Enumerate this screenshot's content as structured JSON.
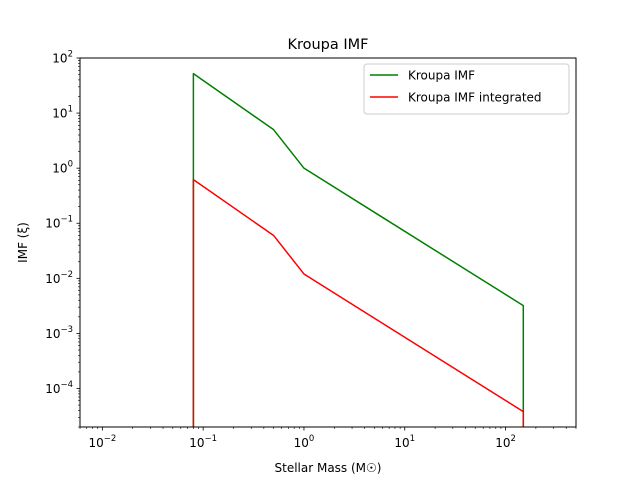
{
  "chart_data": {
    "type": "line",
    "title": "Kroupa IMF",
    "xlabel": "Stellar Mass (M☉)",
    "ylabel": "IMF (ξ)",
    "xscale": "log",
    "yscale": "log",
    "xlim": [
      0.006,
      500
    ],
    "ylim": [
      2e-05,
      100
    ],
    "grid": false,
    "legend_position": "upper right",
    "x_ticks": [
      {
        "value": 0.01,
        "base": "10",
        "exp": "−2"
      },
      {
        "value": 0.1,
        "base": "10",
        "exp": "−1"
      },
      {
        "value": 1,
        "base": "10",
        "exp": "0"
      },
      {
        "value": 10,
        "base": "10",
        "exp": "1"
      },
      {
        "value": 100,
        "base": "10",
        "exp": "2"
      }
    ],
    "y_ticks": [
      {
        "value": 0.0001,
        "base": "10",
        "exp": "−4"
      },
      {
        "value": 0.001,
        "base": "10",
        "exp": "−3"
      },
      {
        "value": 0.01,
        "base": "10",
        "exp": "−2"
      },
      {
        "value": 0.1,
        "base": "10",
        "exp": "−1"
      },
      {
        "value": 1,
        "base": "10",
        "exp": "0"
      },
      {
        "value": 10,
        "base": "10",
        "exp": "1"
      },
      {
        "value": 100,
        "base": "10",
        "exp": "2"
      }
    ],
    "series": [
      {
        "name": "Kroupa IMF",
        "color": "#008000",
        "x": [
          0.08,
          0.08,
          0.5,
          1,
          150,
          150
        ],
        "y": [
          2e-05,
          52,
          5,
          1,
          0.0032,
          2e-05
        ]
      },
      {
        "name": "Kroupa IMF integrated",
        "color": "#ff0000",
        "x": [
          0.08,
          0.08,
          0.5,
          1,
          150,
          150
        ],
        "y": [
          2e-05,
          0.62,
          0.06,
          0.012,
          3.8e-05,
          2e-05
        ]
      }
    ]
  }
}
